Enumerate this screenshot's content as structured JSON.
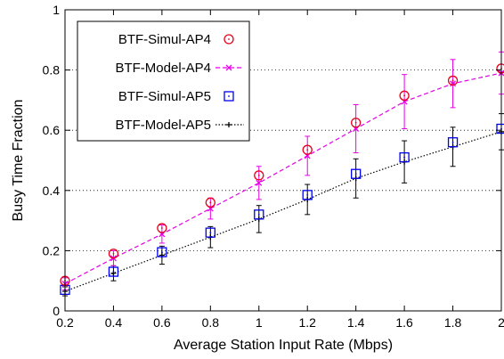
{
  "chart_data": {
    "type": "line",
    "xlabel": "Average Station Input Rate (Mbps)",
    "ylabel": "Busy Time Fraction",
    "xlim": [
      0.2,
      2
    ],
    "ylim": [
      0,
      1
    ],
    "x_ticks": [
      "0.2",
      "0.4",
      "0.6",
      "0.8",
      "1",
      "1.2",
      "1.4",
      "1.6",
      "1.8",
      "2"
    ],
    "y_ticks": [
      "0",
      "0.2",
      "0.4",
      "0.6",
      "0.8",
      "1"
    ],
    "grid": "horizontal-dotted",
    "legend_position": "top-left",
    "series": [
      {
        "name": "BTF-Simul-AP4",
        "style": "circle-markers",
        "color": "#e8001c",
        "x": [
          0.2,
          0.4,
          0.6,
          0.8,
          1.0,
          1.2,
          1.4,
          1.6,
          1.8,
          2.0
        ],
        "y": [
          0.1,
          0.19,
          0.275,
          0.36,
          0.45,
          0.535,
          0.625,
          0.715,
          0.765,
          0.805
        ]
      },
      {
        "name": "BTF-Model-AP4",
        "style": "dashed-line-x-markers-errorbars",
        "color": "#e600e6",
        "x": [
          0.2,
          0.4,
          0.6,
          0.8,
          1.0,
          1.2,
          1.4,
          1.6,
          1.8,
          2.0
        ],
        "y": [
          0.09,
          0.175,
          0.255,
          0.34,
          0.425,
          0.515,
          0.605,
          0.695,
          0.755,
          0.79
        ],
        "err": [
          0.02,
          0.025,
          0.03,
          0.035,
          0.055,
          0.065,
          0.08,
          0.09,
          0.08,
          0.07
        ]
      },
      {
        "name": "BTF-Simul-AP5",
        "style": "square-markers",
        "color": "#0000ee",
        "x": [
          0.2,
          0.4,
          0.6,
          0.8,
          1.0,
          1.2,
          1.4,
          1.6,
          1.8,
          2.0
        ],
        "y": [
          0.07,
          0.13,
          0.195,
          0.26,
          0.32,
          0.385,
          0.455,
          0.51,
          0.56,
          0.605
        ]
      },
      {
        "name": "BTF-Model-AP5",
        "style": "dotted-line-plus-markers-errorbars",
        "color": "#000000",
        "x": [
          0.2,
          0.4,
          0.6,
          0.8,
          1.0,
          1.2,
          1.4,
          1.6,
          1.8,
          2.0
        ],
        "y": [
          0.065,
          0.125,
          0.185,
          0.245,
          0.305,
          0.37,
          0.44,
          0.495,
          0.545,
          0.595
        ],
        "err": [
          0.015,
          0.025,
          0.03,
          0.035,
          0.045,
          0.05,
          0.065,
          0.07,
          0.065,
          0.06
        ]
      }
    ]
  }
}
